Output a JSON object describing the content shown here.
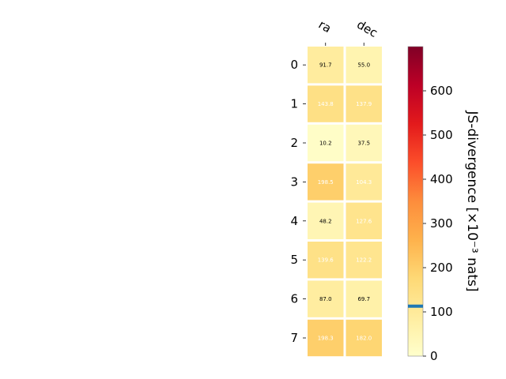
{
  "chart_data": {
    "type": "heatmap",
    "columns": [
      "ra",
      "dec"
    ],
    "rows": [
      "0",
      "1",
      "2",
      "3",
      "4",
      "5",
      "6",
      "7"
    ],
    "values": [
      [
        91.7,
        55.0
      ],
      [
        143.8,
        137.9
      ],
      [
        10.2,
        37.5
      ],
      [
        198.5,
        104.3
      ],
      [
        48.2,
        127.6
      ],
      [
        139.6,
        122.2
      ],
      [
        87.0,
        69.7
      ],
      [
        198.3,
        182.0
      ]
    ],
    "cell_labels": [
      [
        "91.7",
        "55.0"
      ],
      [
        "143.8",
        "137.9"
      ],
      [
        "10.2",
        "37.5"
      ],
      [
        "198.5",
        "104.3"
      ],
      [
        "48.2",
        "127.6"
      ],
      [
        "139.6",
        "122.2"
      ],
      [
        "87.0",
        "69.7"
      ],
      [
        "198.3",
        "182.0"
      ]
    ],
    "colorbar": {
      "label": "JS-divergence [×10⁻³ nats]",
      "ticks": [
        "0",
        "100",
        "200",
        "300",
        "400",
        "500",
        "600"
      ],
      "range": [
        0,
        700
      ],
      "marker_value": 113,
      "marker_color": "#1f77b4",
      "colormap": "YlOrRd"
    }
  }
}
